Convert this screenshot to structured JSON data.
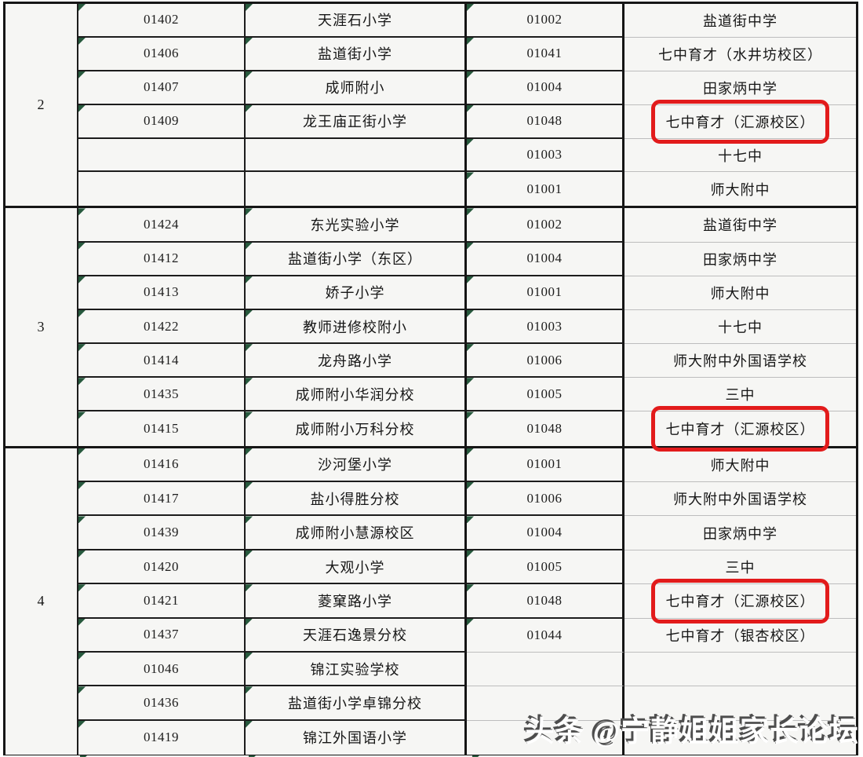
{
  "page": {
    "watermark": "头条 @宁静姐姐家长论坛"
  },
  "colors": {
    "cell_background": "#f6f6f4",
    "grid_dark": "#1c1c1c",
    "grid_light": "#bdbdbd",
    "flag_triangle_green": "#27593d",
    "highlight_box_red": "#e21b1b",
    "watermark_fill": "#ffffff",
    "watermark_shadow": "#4d4d4d"
  },
  "table": {
    "columns": [
      "group_number",
      "primary_school_code",
      "primary_school_name",
      "middle_school_code",
      "middle_school_name"
    ],
    "groups": [
      {
        "group_no": "2",
        "rows": [
          {
            "p_code": "01402",
            "p_name": "天涯石小学",
            "m_code": "01002",
            "m_name": "盐道街中学",
            "highlight": false
          },
          {
            "p_code": "01406",
            "p_name": "盐道街小学",
            "m_code": "01041",
            "m_name": "七中育才（水井坊校区）",
            "highlight": false
          },
          {
            "p_code": "01407",
            "p_name": "成师附小",
            "m_code": "01004",
            "m_name": "田家炳中学",
            "highlight": false
          },
          {
            "p_code": "01409",
            "p_name": "龙王庙正街小学",
            "m_code": "01048",
            "m_name": "七中育才（汇源校区）",
            "highlight": true
          },
          {
            "p_code": "",
            "p_name": "",
            "m_code": "01003",
            "m_name": "十七中",
            "highlight": false
          },
          {
            "p_code": "",
            "p_name": "",
            "m_code": "01001",
            "m_name": "师大附中",
            "highlight": false
          }
        ]
      },
      {
        "group_no": "3",
        "rows": [
          {
            "p_code": "01424",
            "p_name": "东光实验小学",
            "m_code": "01002",
            "m_name": "盐道街中学",
            "highlight": false
          },
          {
            "p_code": "01412",
            "p_name": "盐道街小学（东区）",
            "m_code": "01004",
            "m_name": "田家炳中学",
            "highlight": false
          },
          {
            "p_code": "01413",
            "p_name": "娇子小学",
            "m_code": "01001",
            "m_name": "师大附中",
            "highlight": false
          },
          {
            "p_code": "01422",
            "p_name": "教师进修校附小",
            "m_code": "01003",
            "m_name": "十七中",
            "highlight": false
          },
          {
            "p_code": "01414",
            "p_name": "龙舟路小学",
            "m_code": "01006",
            "m_name": "师大附中外国语学校",
            "highlight": false
          },
          {
            "p_code": "01435",
            "p_name": "成师附小华润分校",
            "m_code": "01005",
            "m_name": "三中",
            "highlight": false
          },
          {
            "p_code": "01415",
            "p_name": "成师附小万科分校",
            "m_code": "01048",
            "m_name": "七中育才（汇源校区）",
            "highlight": true
          }
        ]
      },
      {
        "group_no": "4",
        "rows": [
          {
            "p_code": "01416",
            "p_name": "沙河堡小学",
            "m_code": "01001",
            "m_name": "师大附中",
            "highlight": false
          },
          {
            "p_code": "01417",
            "p_name": "盐小得胜分校",
            "m_code": "01006",
            "m_name": "师大附中外国语学校",
            "highlight": false
          },
          {
            "p_code": "01439",
            "p_name": "成师附小慧源校区",
            "m_code": "01004",
            "m_name": "田家炳中学",
            "highlight": false
          },
          {
            "p_code": "01420",
            "p_name": "大观小学",
            "m_code": "01005",
            "m_name": "三中",
            "highlight": false
          },
          {
            "p_code": "01421",
            "p_name": "菱窠路小学",
            "m_code": "01048",
            "m_name": "七中育才（汇源校区）",
            "highlight": true
          },
          {
            "p_code": "01437",
            "p_name": "天涯石逸景分校",
            "m_code": "01044",
            "m_name": "七中育才（银杏校区）",
            "highlight": false
          },
          {
            "p_code": "01046",
            "p_name": "锦江实验学校",
            "m_code": "",
            "m_name": "",
            "highlight": false
          },
          {
            "p_code": "01436",
            "p_name": "盐道街小学卓锦分校",
            "m_code": "",
            "m_name": "",
            "highlight": false
          },
          {
            "p_code": "01419",
            "p_name": "锦江外国语小学",
            "m_code": "",
            "m_name": "",
            "highlight": false
          }
        ]
      }
    ]
  }
}
